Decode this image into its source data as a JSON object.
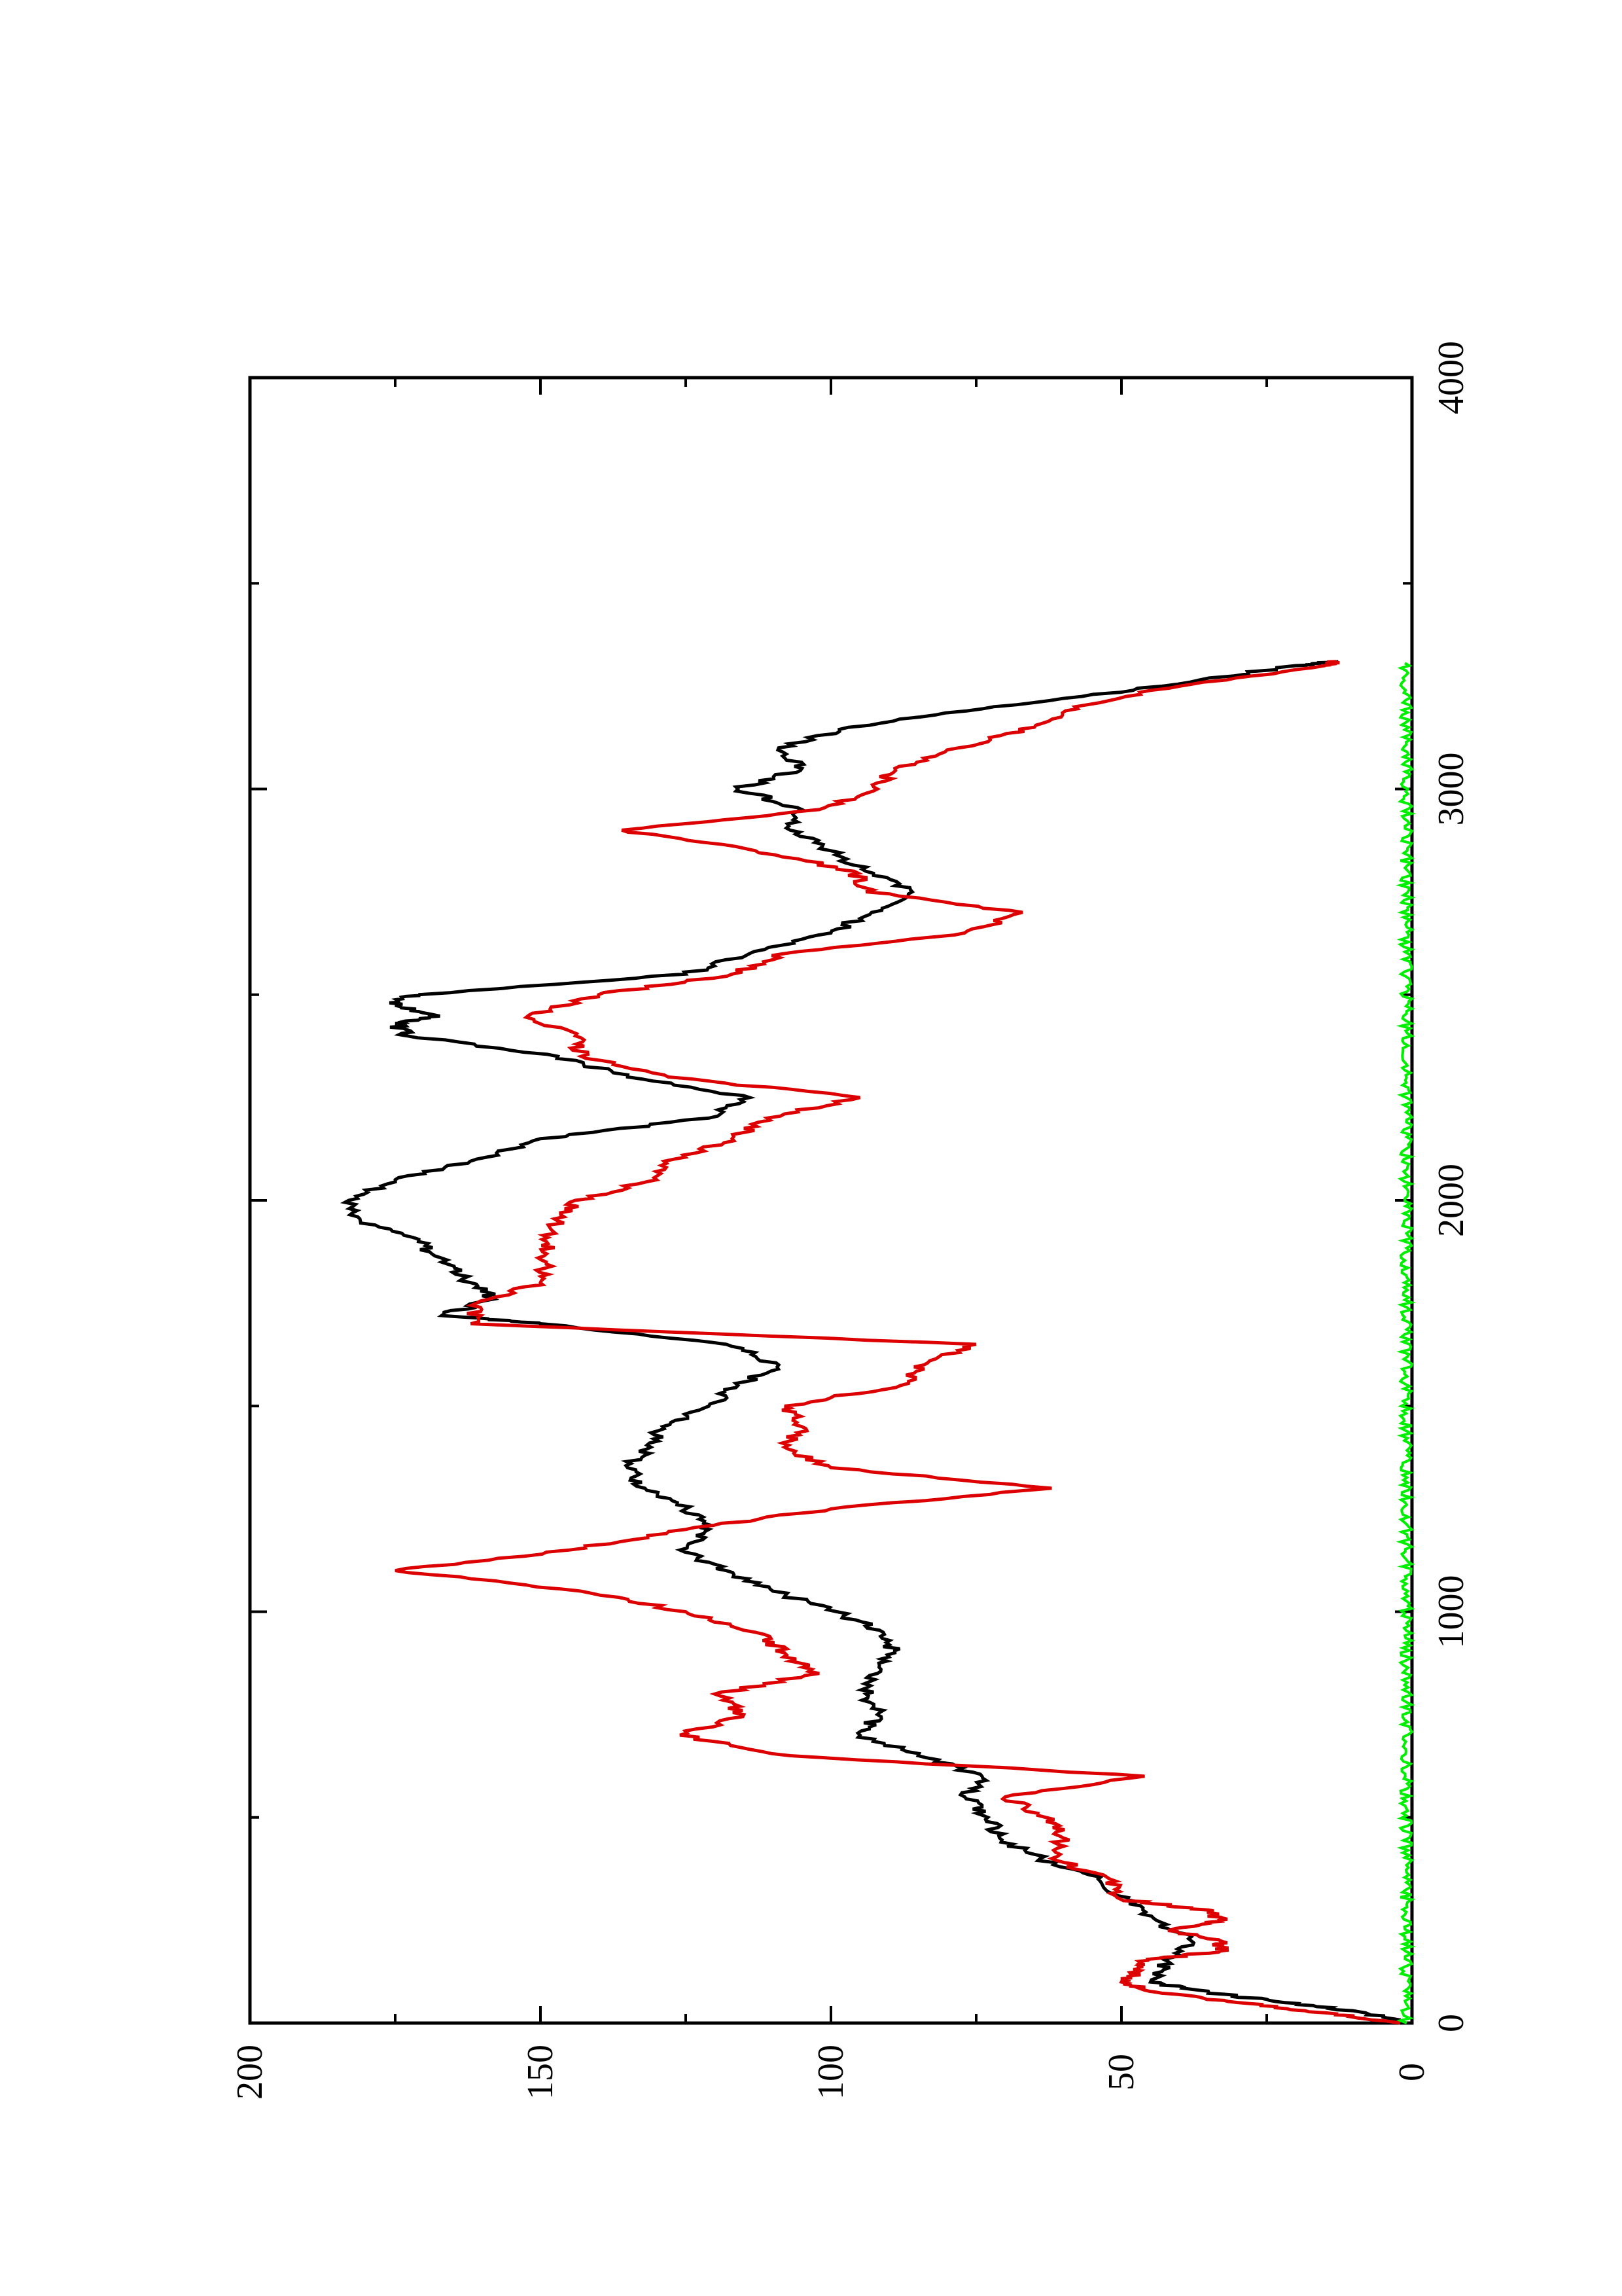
{
  "chart_data": {
    "type": "line",
    "orientation": "rotated-90-ccw",
    "x_ticks": [
      "0",
      "1000",
      "2000",
      "3000",
      "4000"
    ],
    "y_ticks": [
      "0",
      "50",
      "100",
      "150",
      "200"
    ],
    "xlim": [
      0,
      4000
    ],
    "ylim": [
      0,
      200
    ],
    "grid": false,
    "legend": "none",
    "series": [
      {
        "color": "#000000",
        "points": [
          [
            0,
            1
          ],
          [
            25,
            8
          ],
          [
            50,
            22
          ],
          [
            75,
            35
          ],
          [
            100,
            45
          ],
          [
            150,
            42
          ],
          [
            200,
            38
          ],
          [
            250,
            44
          ],
          [
            300,
            49
          ],
          [
            350,
            54
          ],
          [
            400,
            64
          ],
          [
            450,
            71
          ],
          [
            500,
            73
          ],
          [
            550,
            77
          ],
          [
            600,
            74
          ],
          [
            650,
            85
          ],
          [
            700,
            95
          ],
          [
            750,
            92
          ],
          [
            800,
            94
          ],
          [
            850,
            92
          ],
          [
            900,
            89
          ],
          [
            950,
            91
          ],
          [
            1000,
            99
          ],
          [
            1050,
            110
          ],
          [
            1100,
            118
          ],
          [
            1150,
            126
          ],
          [
            1200,
            121
          ],
          [
            1250,
            125
          ],
          [
            1300,
            132
          ],
          [
            1350,
            135
          ],
          [
            1400,
            131
          ],
          [
            1450,
            129
          ],
          [
            1500,
            121
          ],
          [
            1550,
            116
          ],
          [
            1600,
            109
          ],
          [
            1650,
            118
          ],
          [
            1700,
            150
          ],
          [
            1720,
            167
          ],
          [
            1760,
            158
          ],
          [
            1800,
            162
          ],
          [
            1850,
            167
          ],
          [
            1900,
            171
          ],
          [
            1950,
            181
          ],
          [
            2000,
            183
          ],
          [
            2050,
            175
          ],
          [
            2100,
            161
          ],
          [
            2150,
            150
          ],
          [
            2200,
            121
          ],
          [
            2250,
            114
          ],
          [
            2300,
            135
          ],
          [
            2350,
            147
          ],
          [
            2400,
            173
          ],
          [
            2430,
            175
          ],
          [
            2450,
            168
          ],
          [
            2480,
            176
          ],
          [
            2500,
            171
          ],
          [
            2550,
            125
          ],
          [
            2600,
            114
          ],
          [
            2650,
            100
          ],
          [
            2700,
            93
          ],
          [
            2750,
            86
          ],
          [
            2800,
            94
          ],
          [
            2850,
            100
          ],
          [
            2900,
            107
          ],
          [
            2950,
            105
          ],
          [
            3000,
            116
          ],
          [
            3050,
            105
          ],
          [
            3100,
            109
          ],
          [
            3150,
            97
          ],
          [
            3200,
            72
          ],
          [
            3250,
            43
          ],
          [
            3300,
            20
          ],
          [
            3310,
            13
          ]
        ]
      },
      {
        "color": "#dd0000",
        "points": [
          [
            0,
            2
          ],
          [
            25,
            15
          ],
          [
            50,
            30
          ],
          [
            75,
            44
          ],
          [
            100,
            50
          ],
          [
            125,
            47
          ],
          [
            150,
            47
          ],
          [
            175,
            33
          ],
          [
            200,
            33
          ],
          [
            225,
            42
          ],
          [
            250,
            33
          ],
          [
            275,
            35
          ],
          [
            300,
            50
          ],
          [
            350,
            52
          ],
          [
            400,
            62
          ],
          [
            450,
            60
          ],
          [
            500,
            63
          ],
          [
            550,
            70
          ],
          [
            600,
            46
          ],
          [
            650,
            107
          ],
          [
            700,
            126
          ],
          [
            750,
            115
          ],
          [
            800,
            120
          ],
          [
            850,
            102
          ],
          [
            900,
            108
          ],
          [
            950,
            113
          ],
          [
            1000,
            125
          ],
          [
            1050,
            143
          ],
          [
            1100,
            175
          ],
          [
            1150,
            145
          ],
          [
            1200,
            125
          ],
          [
            1250,
            100
          ],
          [
            1300,
            62
          ],
          [
            1350,
            100
          ],
          [
            1400,
            108
          ],
          [
            1450,
            105
          ],
          [
            1500,
            108
          ],
          [
            1550,
            88
          ],
          [
            1600,
            84
          ],
          [
            1650,
            75
          ],
          [
            1700,
            162
          ],
          [
            1750,
            161
          ],
          [
            1800,
            150
          ],
          [
            1850,
            149
          ],
          [
            1900,
            149
          ],
          [
            1950,
            147
          ],
          [
            2000,
            144
          ],
          [
            2050,
            130
          ],
          [
            2100,
            127
          ],
          [
            2150,
            117
          ],
          [
            2200,
            111
          ],
          [
            2250,
            95
          ],
          [
            2300,
            128
          ],
          [
            2350,
            143
          ],
          [
            2400,
            144
          ],
          [
            2450,
            152
          ],
          [
            2500,
            140
          ],
          [
            2550,
            117
          ],
          [
            2600,
            108
          ],
          [
            2650,
            77
          ],
          [
            2700,
            67
          ],
          [
            2750,
            94
          ],
          [
            2800,
            96
          ],
          [
            2850,
            113
          ],
          [
            2900,
            136
          ],
          [
            2950,
            102
          ],
          [
            3000,
            92
          ],
          [
            3050,
            89
          ],
          [
            3100,
            78
          ],
          [
            3150,
            65
          ],
          [
            3200,
            58
          ],
          [
            3250,
            40
          ],
          [
            3300,
            15
          ],
          [
            3310,
            13
          ]
        ]
      },
      {
        "color": "#00ee00",
        "noise_band": [
          0,
          2
        ],
        "x_range": [
          0,
          3310
        ]
      }
    ]
  }
}
